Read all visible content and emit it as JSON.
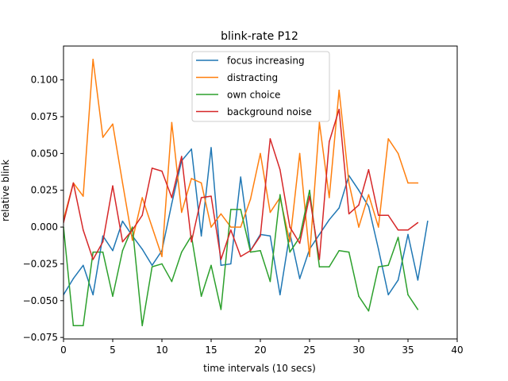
{
  "chart_data": {
    "type": "line",
    "title": "blink-rate P12",
    "xlabel": "time intervals (10 secs)",
    "ylabel": "relative blink",
    "xlim": [
      0,
      40
    ],
    "ylim": [
      -0.076,
      0.123
    ],
    "xticks": [
      0,
      5,
      10,
      15,
      20,
      25,
      30,
      35,
      40
    ],
    "xtick_labels": [
      "0",
      "5",
      "10",
      "15",
      "20",
      "25",
      "30",
      "35",
      "40"
    ],
    "yticks": [
      -0.075,
      -0.05,
      -0.025,
      0.0,
      0.025,
      0.05,
      0.075,
      0.1
    ],
    "ytick_labels": [
      "−0.075",
      "−0.050",
      "−0.025",
      "0.000",
      "0.025",
      "0.050",
      "0.075",
      "0.100"
    ],
    "grid": false,
    "legend_position": "top-center",
    "series": [
      {
        "name": "focus increasing",
        "color": "#1f77b4",
        "x": [
          0,
          1,
          2,
          3,
          4,
          5,
          6,
          7,
          8,
          9,
          10,
          11,
          12,
          13,
          14,
          15,
          16,
          17,
          18,
          19,
          20,
          21,
          22,
          23,
          24,
          25,
          26,
          27,
          28,
          29,
          30,
          31,
          32,
          33,
          34,
          35,
          36,
          37
        ],
        "y": [
          -0.046,
          -0.035,
          -0.026,
          -0.046,
          -0.006,
          -0.016,
          0.004,
          -0.006,
          -0.015,
          -0.026,
          -0.016,
          0.016,
          0.045,
          0.053,
          -0.006,
          0.054,
          -0.026,
          -0.025,
          0.034,
          -0.016,
          -0.005,
          -0.006,
          -0.046,
          -0.004,
          -0.035,
          -0.015,
          -0.005,
          0.005,
          0.013,
          0.035,
          0.025,
          0.014,
          -0.015,
          -0.046,
          -0.036,
          -0.005,
          -0.036,
          0.004
        ]
      },
      {
        "name": "distracting",
        "color": "#ff7f0e",
        "x": [
          0,
          1,
          2,
          3,
          4,
          5,
          6,
          7,
          8,
          9,
          10,
          11,
          12,
          13,
          14,
          15,
          16,
          17,
          18,
          19,
          20,
          21,
          22,
          23,
          24,
          25,
          26,
          27,
          28,
          29,
          30,
          31,
          32,
          33,
          34,
          35,
          36
        ],
        "y": [
          0.005,
          0.03,
          0.021,
          0.114,
          0.061,
          0.07,
          0.03,
          -0.009,
          0.02,
          0.0,
          -0.02,
          0.071,
          0.01,
          0.033,
          0.03,
          0.0,
          0.009,
          0.0,
          0.0,
          0.019,
          0.05,
          0.01,
          0.02,
          -0.01,
          0.05,
          -0.02,
          0.071,
          0.02,
          0.093,
          0.03,
          0.0,
          0.022,
          0.0,
          0.06,
          0.05,
          0.03,
          0.03
        ]
      },
      {
        "name": "own choice",
        "color": "#2ca02c",
        "x": [
          0,
          1,
          2,
          3,
          4,
          5,
          6,
          7,
          8,
          9,
          10,
          11,
          12,
          13,
          14,
          15,
          16,
          17,
          18,
          19,
          20,
          21,
          22,
          23,
          24,
          25,
          26,
          27,
          28,
          29,
          30,
          31,
          32,
          33,
          34,
          35,
          36
        ],
        "y": [
          0.0,
          -0.067,
          -0.067,
          -0.017,
          -0.017,
          -0.047,
          -0.016,
          0.0,
          -0.067,
          -0.027,
          -0.025,
          -0.037,
          -0.017,
          -0.006,
          -0.047,
          -0.026,
          -0.056,
          0.012,
          0.012,
          -0.017,
          -0.016,
          -0.037,
          0.022,
          -0.017,
          -0.007,
          0.025,
          -0.027,
          -0.027,
          -0.016,
          -0.017,
          -0.047,
          -0.057,
          -0.027,
          -0.026,
          -0.007,
          -0.046,
          -0.056
        ]
      },
      {
        "name": "background noise",
        "color": "#d62728",
        "x": [
          0,
          1,
          2,
          3,
          4,
          5,
          6,
          7,
          8,
          9,
          10,
          11,
          12,
          13,
          14,
          15,
          16,
          17,
          18,
          19,
          20,
          21,
          22,
          23,
          24,
          25,
          26,
          27,
          28,
          29,
          30,
          31,
          32,
          33,
          34,
          35,
          36
        ],
        "y": [
          0.003,
          0.03,
          -0.002,
          -0.022,
          -0.01,
          0.028,
          -0.01,
          -0.002,
          0.008,
          0.04,
          0.038,
          0.02,
          0.048,
          -0.01,
          0.02,
          0.021,
          -0.022,
          -0.002,
          -0.02,
          -0.016,
          -0.006,
          0.06,
          0.039,
          0.0,
          -0.011,
          0.021,
          -0.022,
          0.058,
          0.08,
          0.009,
          0.015,
          0.039,
          0.008,
          0.008,
          -0.002,
          -0.002,
          0.003
        ]
      }
    ]
  }
}
